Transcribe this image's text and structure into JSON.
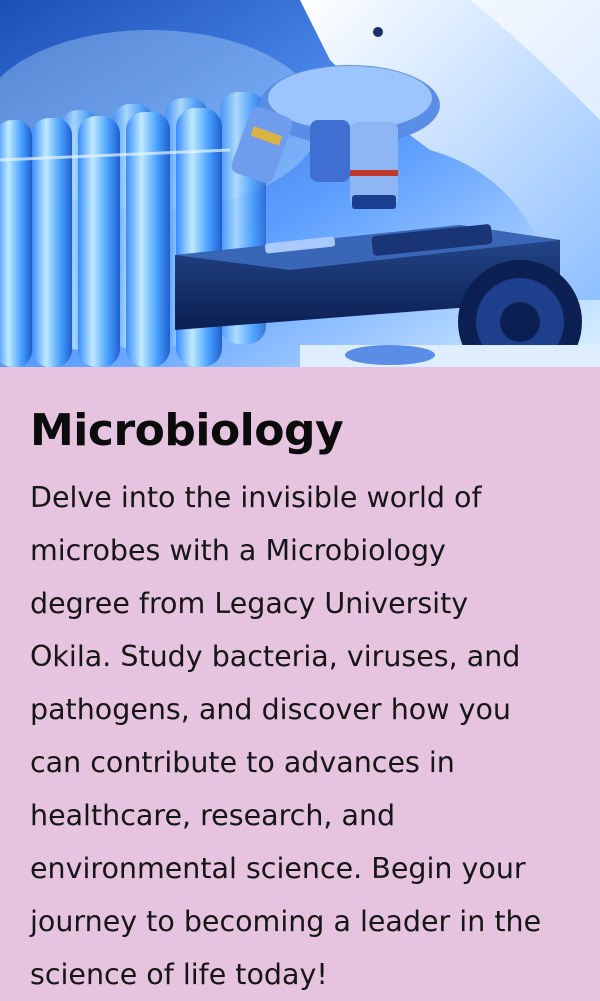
{
  "hero": {
    "image_name": "microscope-and-test-tubes-photo",
    "palette": {
      "deep": "#0a2a6e",
      "mid": "#2f6fe0",
      "light": "#bfe6ff",
      "glow": "#ffffff"
    }
  },
  "article": {
    "title": "Microbiology",
    "lines": [
      "Delve into the invisible world of",
      "microbes with a Microbiology",
      "degree from Legacy University",
      "Okila. Study bacteria, viruses, and",
      "pathogens, and discover how you",
      "can contribute to advances in",
      "healthcare, research, and",
      "environmental science. Begin your",
      "journey to becoming a leader in the",
      "science of life today!"
    ]
  },
  "colors": {
    "panel_background": "#e6c4e0",
    "text": "#161616"
  }
}
